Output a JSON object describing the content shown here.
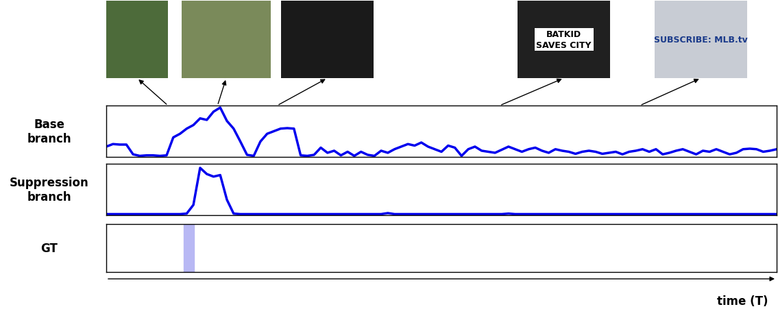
{
  "frames": [
    {
      "time": 9.2
    },
    {
      "time": 16.6
    },
    {
      "time": 25.5
    },
    {
      "time": 58.7,
      "text": "BATKID\nSAVES CITY"
    },
    {
      "time": 79.6,
      "text": "SUBSCRIBE: MLB.tv"
    }
  ],
  "xlabel": "time (T)",
  "chart_data": [
    {
      "type": "line",
      "title": "Base\nbranch",
      "color": "#0000ee",
      "tick_labels": false,
      "xlim": [
        0,
        100
      ],
      "ylim": [
        0,
        1
      ],
      "x": [
        0,
        1,
        2,
        3,
        4,
        5,
        6,
        7,
        8,
        9,
        10,
        11,
        12,
        13,
        14,
        15,
        16,
        17,
        18,
        19,
        20,
        21,
        22,
        23,
        24,
        25,
        26,
        27,
        28,
        29,
        30,
        31,
        32,
        33,
        34,
        35,
        36,
        37,
        38,
        39,
        40,
        41,
        42,
        43,
        44,
        45,
        46,
        47,
        48,
        49,
        50,
        51,
        52,
        53,
        54,
        55,
        56,
        57,
        58,
        59,
        60,
        61,
        62,
        63,
        64,
        65,
        66,
        67,
        68,
        69,
        70,
        71,
        72,
        73,
        74,
        75,
        76,
        77,
        78,
        79,
        80,
        81,
        82,
        83,
        84,
        85,
        86,
        87,
        88,
        89,
        90,
        91,
        92,
        93,
        94,
        95,
        96,
        97,
        98,
        99,
        100
      ],
      "values": [
        0.2,
        0.25,
        0.24,
        0.24,
        0.05,
        0.02,
        0.03,
        0.03,
        0.02,
        0.03,
        0.38,
        0.45,
        0.55,
        0.62,
        0.75,
        0.72,
        0.88,
        0.96,
        0.7,
        0.55,
        0.3,
        0.04,
        0.02,
        0.3,
        0.45,
        0.5,
        0.55,
        0.56,
        0.55,
        0.03,
        0.02,
        0.04,
        0.18,
        0.08,
        0.12,
        0.03,
        0.1,
        0.02,
        0.1,
        0.04,
        0.02,
        0.12,
        0.08,
        0.15,
        0.2,
        0.25,
        0.22,
        0.28,
        0.2,
        0.15,
        0.1,
        0.22,
        0.18,
        0.02,
        0.15,
        0.2,
        0.12,
        0.1,
        0.08,
        0.14,
        0.2,
        0.15,
        0.1,
        0.15,
        0.18,
        0.12,
        0.08,
        0.15,
        0.12,
        0.1,
        0.06,
        0.1,
        0.12,
        0.1,
        0.06,
        0.08,
        0.1,
        0.05,
        0.1,
        0.12,
        0.15,
        0.1,
        0.15,
        0.05,
        0.08,
        0.12,
        0.15,
        0.1,
        0.05,
        0.12,
        0.1,
        0.15,
        0.1,
        0.05,
        0.08,
        0.15,
        0.16,
        0.15,
        0.1,
        0.12,
        0.15
      ]
    },
    {
      "type": "line",
      "title": "Suppression\nbranch",
      "color": "#0000ee",
      "tick_labels": false,
      "xlim": [
        0,
        100
      ],
      "ylim": [
        0,
        1
      ],
      "x": [
        0,
        1,
        2,
        3,
        4,
        5,
        6,
        7,
        8,
        9,
        10,
        11,
        12,
        13,
        14,
        15,
        16,
        17,
        18,
        19,
        20,
        21,
        22,
        23,
        24,
        25,
        26,
        27,
        28,
        29,
        30,
        31,
        32,
        33,
        34,
        35,
        36,
        37,
        38,
        39,
        40,
        41,
        42,
        43,
        44,
        45,
        46,
        47,
        48,
        49,
        50,
        51,
        52,
        53,
        54,
        55,
        56,
        57,
        58,
        59,
        60,
        61,
        62,
        63,
        64,
        65,
        66,
        67,
        68,
        69,
        70,
        71,
        72,
        73,
        74,
        75,
        76,
        77,
        78,
        79,
        80,
        81,
        82,
        83,
        84,
        85,
        86,
        87,
        88,
        89,
        90,
        91,
        92,
        93,
        94,
        95,
        96,
        97,
        98,
        99,
        100
      ],
      "values": [
        0.02,
        0.02,
        0.02,
        0.02,
        0.02,
        0.02,
        0.02,
        0.02,
        0.02,
        0.02,
        0.02,
        0.02,
        0.03,
        0.2,
        0.92,
        0.8,
        0.75,
        0.78,
        0.3,
        0.03,
        0.02,
        0.02,
        0.02,
        0.02,
        0.02,
        0.02,
        0.02,
        0.02,
        0.02,
        0.02,
        0.02,
        0.02,
        0.02,
        0.02,
        0.02,
        0.02,
        0.02,
        0.02,
        0.02,
        0.02,
        0.02,
        0.02,
        0.04,
        0.02,
        0.02,
        0.02,
        0.02,
        0.02,
        0.02,
        0.02,
        0.02,
        0.02,
        0.02,
        0.02,
        0.02,
        0.02,
        0.02,
        0.02,
        0.02,
        0.02,
        0.03,
        0.02,
        0.02,
        0.02,
        0.02,
        0.02,
        0.02,
        0.02,
        0.02,
        0.02,
        0.02,
        0.02,
        0.02,
        0.02,
        0.02,
        0.02,
        0.02,
        0.02,
        0.02,
        0.02,
        0.02,
        0.02,
        0.02,
        0.02,
        0.02,
        0.02,
        0.02,
        0.02,
        0.02,
        0.02,
        0.02,
        0.02,
        0.02,
        0.02,
        0.02,
        0.02,
        0.02,
        0.02,
        0.02,
        0.02,
        0.02
      ]
    },
    {
      "type": "span",
      "title": "GT",
      "color": "#b8b8f4",
      "tick_labels": false,
      "xlim": [
        0,
        100
      ],
      "ylim": [
        0,
        1
      ],
      "spans": [
        [
          11.6,
          13.1
        ]
      ]
    }
  ]
}
